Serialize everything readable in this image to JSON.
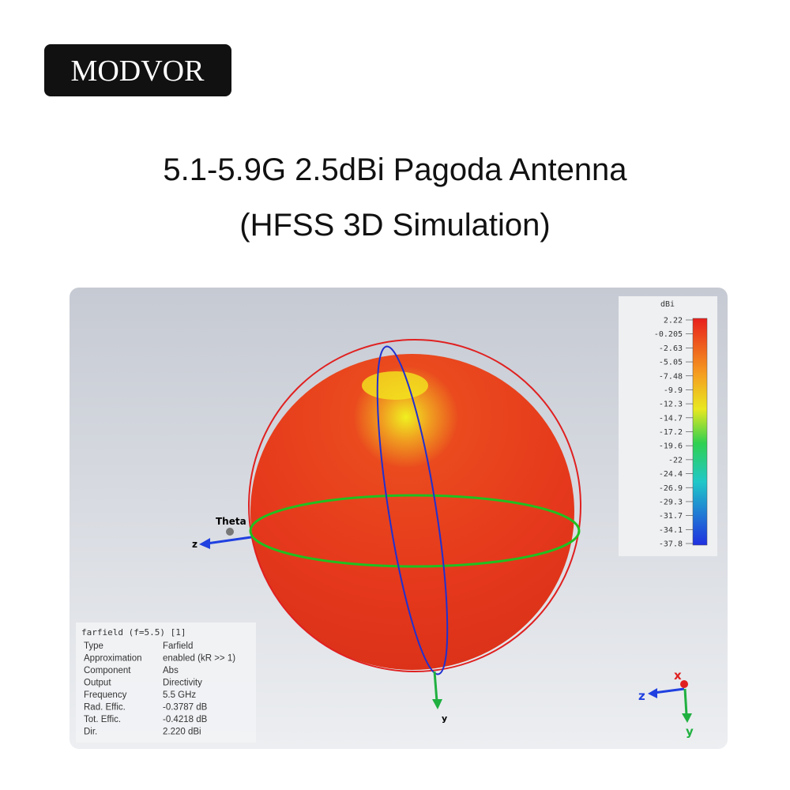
{
  "header": {
    "brand": "MODVOR",
    "title_line1": "5.1-5.9G 2.5dBi Pagoda Antenna",
    "title_line2": "(HFSS 3D Simulation)"
  },
  "simulation": {
    "colorbar": {
      "unit": "dBi",
      "labels": [
        "2.22",
        "-0.205",
        "-2.63",
        "-5.05",
        "-7.48",
        "-9.9",
        "-12.3",
        "-14.7",
        "-17.2",
        "-19.6",
        "-22",
        "-24.4",
        "-26.9",
        "-29.3",
        "-31.7",
        "-34.1",
        "-37.8"
      ]
    },
    "axes": {
      "theta": "Theta",
      "z": "z",
      "y": "y"
    },
    "triad": {
      "x": "x",
      "z": "z",
      "y": "y"
    },
    "info": {
      "title": "farfield (f=5.5) [1]",
      "rows": [
        [
          "Type",
          "Farfield"
        ],
        [
          "Approximation",
          "enabled (kR >> 1)"
        ],
        [
          "Component",
          "Abs"
        ],
        [
          "Output",
          "Directivity"
        ],
        [
          "Frequency",
          "5.5 GHz"
        ],
        [
          "Rad. Effic.",
          "-0.3787 dB"
        ],
        [
          "Tot. Effic.",
          "-0.4218 dB"
        ],
        [
          "Dir.",
          "2.220 dBi"
        ]
      ]
    }
  }
}
